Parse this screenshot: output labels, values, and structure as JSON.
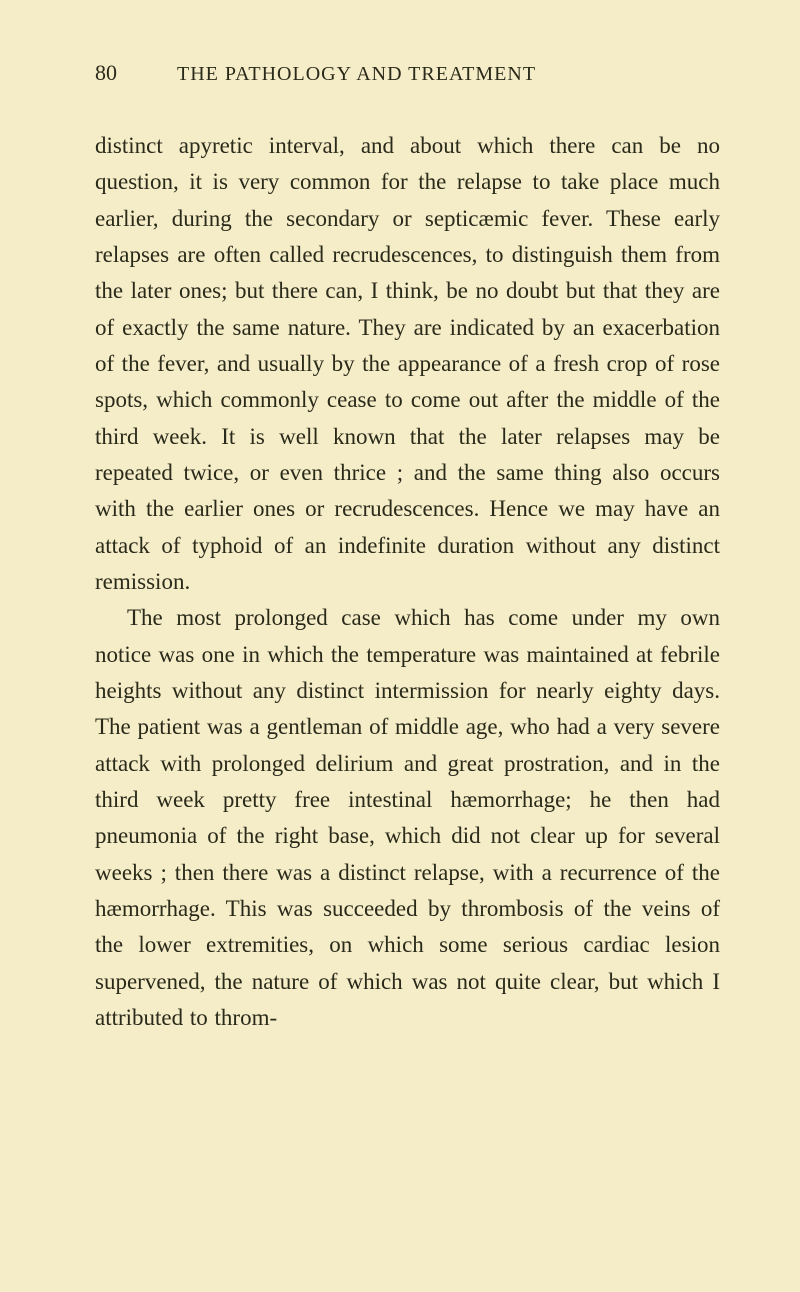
{
  "header": {
    "page_number": "80",
    "running_title": "THE PATHOLOGY AND TREATMENT"
  },
  "paragraphs": {
    "p1": "distinct apyretic interval, and about which there can be no question, it is very common for the relapse to take place much earlier, during the secondary or septicæmic fever. These early relapses are often called recrudescences, to distinguish them from the later ones; but there can, I think, be no doubt but that they are of exactly the same nature. They are indicated by an exacerbation of the fever, and usually by the appearance of a fresh crop of rose spots, which commonly cease to come out after the middle of the third week. It is well known that the later relapses may be repeated twice, or even thrice ; and the same thing also occurs with the earlier ones or recrudescences. Hence we may have an attack of typhoid of an indefinite duration without any distinct remission.",
    "p2": "The most prolonged case which has come under my own notice was one in which the temperature was maintained at febrile heights without any distinct intermission for nearly eighty days. The patient was a gentleman of middle age, who had a very severe attack with prolonged delirium and great prostration, and in the third week pretty free intestinal hæmorrhage; he then had pneumonia of the right base, which did not clear up for several weeks ; then there was a distinct relapse, with a recurrence of the hæmorrhage. This was succeeded by thrombosis of the veins of the lower extremities, on which some serious cardiac lesion supervened, the nature of which was not quite clear, but which I attributed to throm-"
  },
  "colors": {
    "background": "#f5ecc8",
    "text": "#2a2a1a"
  },
  "typography": {
    "body_fontsize": 23,
    "header_fontsize": 20,
    "page_number_fontsize": 22,
    "line_height": 1.58,
    "font_family": "Georgia, Times New Roman, serif"
  }
}
